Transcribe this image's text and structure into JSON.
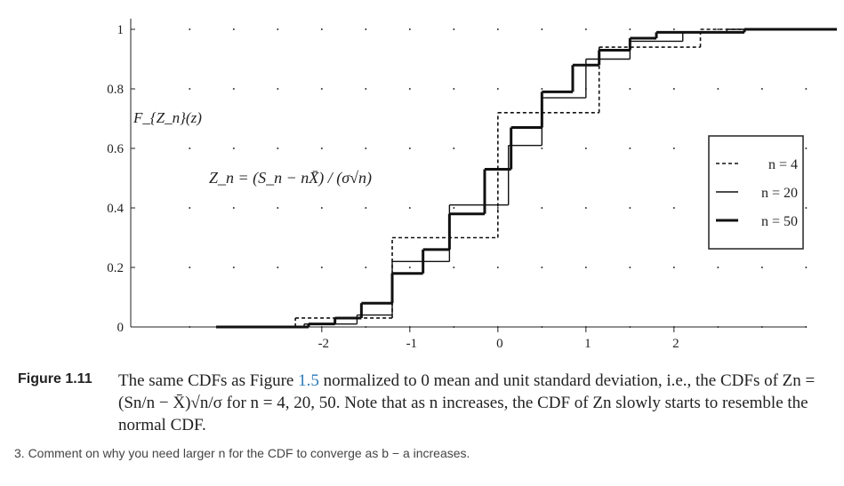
{
  "chart_data": {
    "type": "step",
    "y_label": "F_{Z_n}(z)",
    "annotation": "Z_n = (S_n − nX̄) / (σ√n)",
    "xlim": [
      -4.2,
      3.85
    ],
    "ylim": [
      0,
      1
    ],
    "xticks": [
      -2,
      -1,
      0,
      1,
      2
    ],
    "yticks": [
      0,
      0.2,
      0.4,
      0.6,
      0.8,
      1
    ],
    "grid": "dots",
    "legend": "right",
    "series": [
      {
        "name": "n = 4",
        "style": "dashed",
        "color": "#111",
        "x": [
          -3.2,
          -2.3,
          -1.2,
          0,
          1.15,
          2.3,
          3.8
        ],
        "values": [
          0,
          0.03,
          0.3,
          0.72,
          0.94,
          1,
          1
        ]
      },
      {
        "name": "n = 20",
        "style": "thin",
        "color": "#111",
        "x": [
          -3.2,
          -2.2,
          -1.6,
          -1.2,
          -0.55,
          0.12,
          0.5,
          1.0,
          1.5,
          2.1,
          2.6
        ],
        "values": [
          0,
          0.01,
          0.04,
          0.22,
          0.41,
          0.61,
          0.77,
          0.9,
          0.96,
          0.99,
          1
        ]
      },
      {
        "name": "n = 50",
        "style": "thick",
        "color": "#111",
        "x": [
          -3.2,
          -2.15,
          -1.85,
          -1.55,
          -1.2,
          -0.85,
          -0.55,
          -0.15,
          0.15,
          0.5,
          0.85,
          1.15,
          1.5,
          1.8,
          2.8
        ],
        "values": [
          0,
          0.01,
          0.03,
          0.08,
          0.18,
          0.26,
          0.38,
          0.53,
          0.67,
          0.79,
          0.88,
          0.93,
          0.97,
          0.99,
          1
        ]
      }
    ]
  },
  "figure_label": "Figure 1.11",
  "caption": {
    "before": "The same CDFs as Figure ",
    "ref": "1.5",
    "after": " normalized to 0 mean and unit standard deviation, i.e., the CDFs of Zn = (Sn/n − X̄)√n/σ for n = 4, 20, 50. Note that as n increases, the CDF of Zn slowly starts to resemble the normal CDF."
  },
  "question": "3. Comment on why you need larger n for the CDF to converge as b − a increases."
}
